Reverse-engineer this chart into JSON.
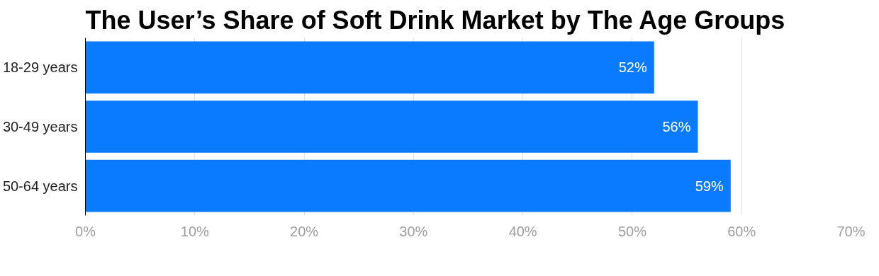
{
  "chart_data": {
    "type": "bar",
    "orientation": "horizontal",
    "title": "The User’s Share of Soft Drink Market by The Age Groups",
    "categories": [
      "18-29 years",
      "30-49 years",
      "50-64 years"
    ],
    "values": [
      52,
      56,
      59
    ],
    "color": "#0a7bff",
    "value_labels": [
      "52%",
      "56%",
      "59%"
    ],
    "xlim": [
      0,
      70
    ],
    "xticks": [
      {
        "value": 0,
        "label": "0%"
      },
      {
        "value": 10,
        "label": "10%"
      },
      {
        "value": 20,
        "label": "20%"
      },
      {
        "value": 30,
        "label": "30%"
      },
      {
        "value": 40,
        "label": "40%"
      },
      {
        "value": 50,
        "label": "50%"
      },
      {
        "value": 60,
        "label": "60%"
      },
      {
        "value": 70,
        "label": "70%"
      }
    ],
    "grid": "x"
  }
}
